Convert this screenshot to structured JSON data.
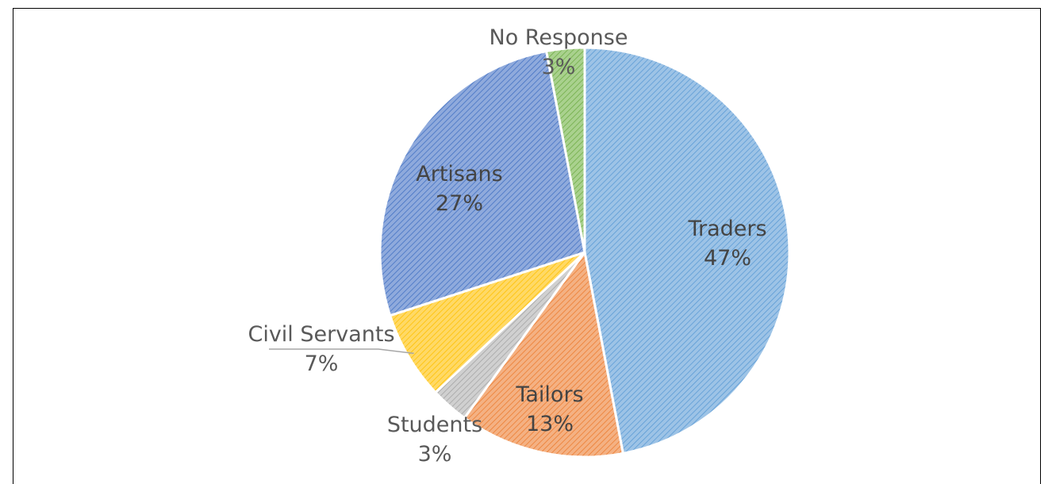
{
  "chart_data": {
    "type": "pie",
    "title": "",
    "slices": [
      {
        "label": "Traders",
        "value": 47,
        "value_label": "47%",
        "color": "#9DC3E6",
        "hatch": "#5B9BD5"
      },
      {
        "label": "Tailors",
        "value": 13,
        "value_label": "13%",
        "color": "#F4B183",
        "hatch": "#ED7D31"
      },
      {
        "label": "Students",
        "value": 3,
        "value_label": "3%",
        "color": "#D0D0D0",
        "hatch": "#A5A5A5"
      },
      {
        "label": "Civil Servants",
        "value": 7,
        "value_label": "7%",
        "color": "#FFD966",
        "hatch": "#FFC000"
      },
      {
        "label": "Artisans",
        "value": 27,
        "value_label": "27%",
        "color": "#8FAADC",
        "hatch": "#4472C4"
      },
      {
        "label": "No Response",
        "value": 3,
        "value_label": "3%",
        "color": "#A9D18E",
        "hatch": "#70AD47"
      }
    ],
    "legend": "none",
    "label_style": "category name and percentage"
  }
}
